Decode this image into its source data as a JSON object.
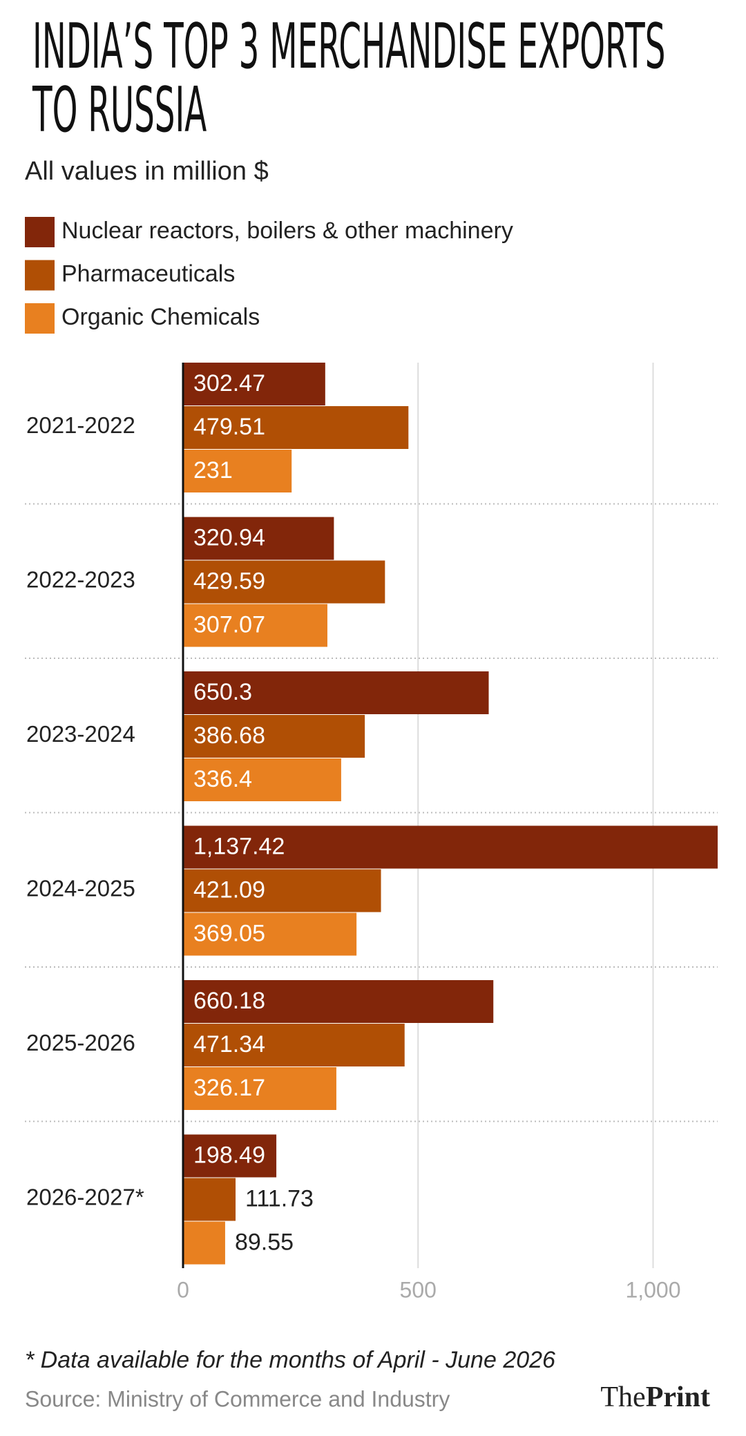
{
  "chart_data": {
    "type": "bar",
    "orientation": "horizontal",
    "title": "INDIA’S TOP 3 MERCHANDISE EXPORTS\nTO RUSSIA",
    "subtitle": "All values in million $",
    "categories": [
      "2021-2022",
      "2022-2023",
      "2023-2024",
      "2024-2025",
      "2025-2026",
      "2026-2027*"
    ],
    "series": [
      {
        "name": "Nuclear reactors, boilers & other machinery",
        "color": "#82260a",
        "values": [
          302.47,
          320.94,
          650.3,
          1137.42,
          660.18,
          198.49
        ],
        "value_labels": [
          "302.47",
          "320.94",
          "650.3",
          "1,137.42",
          "660.18",
          "198.49"
        ]
      },
      {
        "name": "Pharmaceuticals",
        "color": "#b04f05",
        "values": [
          479.51,
          429.59,
          386.68,
          421.09,
          471.34,
          111.73
        ]
      },
      {
        "name": "Organic Chemicals",
        "color": "#e88020",
        "values": [
          231,
          307.07,
          336.4,
          369.05,
          326.17,
          89.55
        ]
      }
    ],
    "xlim": [
      0,
      1137.42
    ],
    "xticks": [
      0,
      500,
      {
        "value": 1000,
        "label": "1,000"
      }
    ],
    "grid": true,
    "footnote": "* Data available for the months of April - June 2026",
    "source": "Source: Ministry of Commerce and Industry",
    "logo": [
      "The",
      "Print"
    ]
  }
}
